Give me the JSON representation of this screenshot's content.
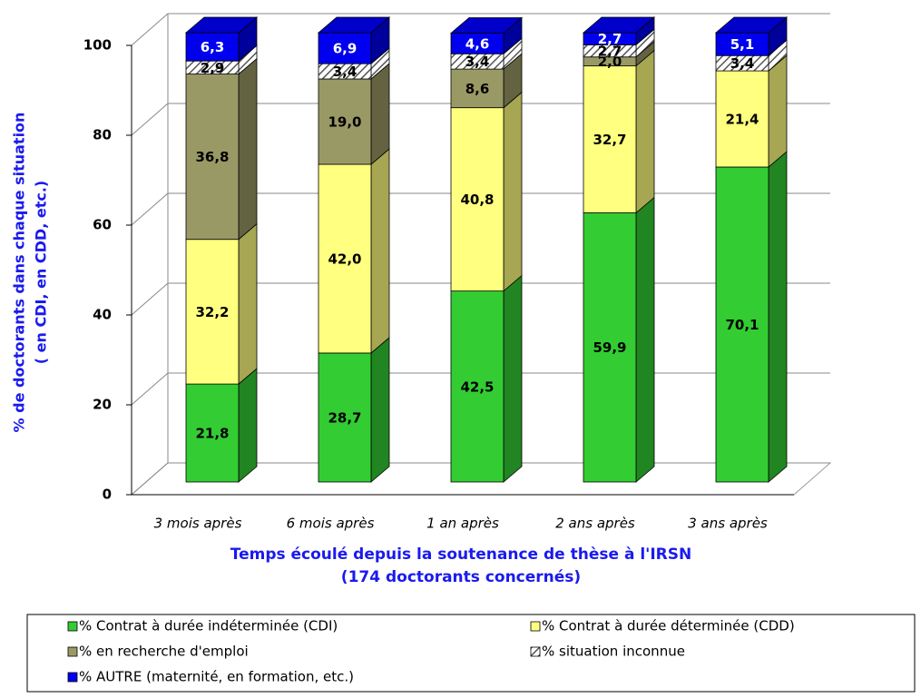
{
  "chart_data": {
    "type": "stacked_bar_3d",
    "y_label": [
      "% de doctorants dans chaque situation",
      "( en CDI, en CDD, etc.)"
    ],
    "x_label": [
      "Temps écoulé depuis la soutenance de thèse à l'IRSN",
      "(174 doctorants concernés)"
    ],
    "categories": [
      "3 mois après",
      "6 mois après",
      "1 an après",
      "2 ans après",
      "3 ans après"
    ],
    "series": [
      {
        "name": "% Contrat à durée indéterminée (CDI)",
        "color": "#33cc33",
        "values": [
          21.8,
          28.7,
          42.5,
          59.9,
          70.1
        ],
        "value_labels": [
          "21,8",
          "28,7",
          "42,5",
          "59,9",
          "70,1"
        ]
      },
      {
        "name": "% Contrat à durée déterminée (CDD)",
        "color": "#ffff80",
        "values": [
          32.2,
          42.0,
          40.8,
          32.7,
          21.4
        ],
        "value_labels": [
          "32,2",
          "42,0",
          "40,8",
          "32,7",
          "21,4"
        ]
      },
      {
        "name": "% en recherche d'emploi",
        "color": "#999966",
        "values": [
          36.8,
          19.0,
          8.6,
          2.0,
          0
        ],
        "value_labels": [
          "36,8",
          "19,0",
          "8,6",
          "2,0",
          null
        ]
      },
      {
        "name": "% situation inconnue",
        "color": "#ffffff",
        "hatch": true,
        "values": [
          2.9,
          3.4,
          3.4,
          2.7,
          3.4
        ],
        "value_labels": [
          "2,9",
          "3,4",
          "3,4",
          "2,7",
          "3,4"
        ]
      },
      {
        "name": "% AUTRE (maternité, en formation, etc.)",
        "color": "#0000ee",
        "values": [
          6.3,
          6.9,
          4.6,
          2.7,
          5.1
        ],
        "value_labels": [
          "6,3",
          "6,9",
          "4,6",
          "2,7",
          "5,1"
        ]
      }
    ],
    "ylim": [
      0,
      100
    ],
    "yticks": [
      0,
      20,
      40,
      60,
      80,
      100
    ],
    "grid": true
  }
}
